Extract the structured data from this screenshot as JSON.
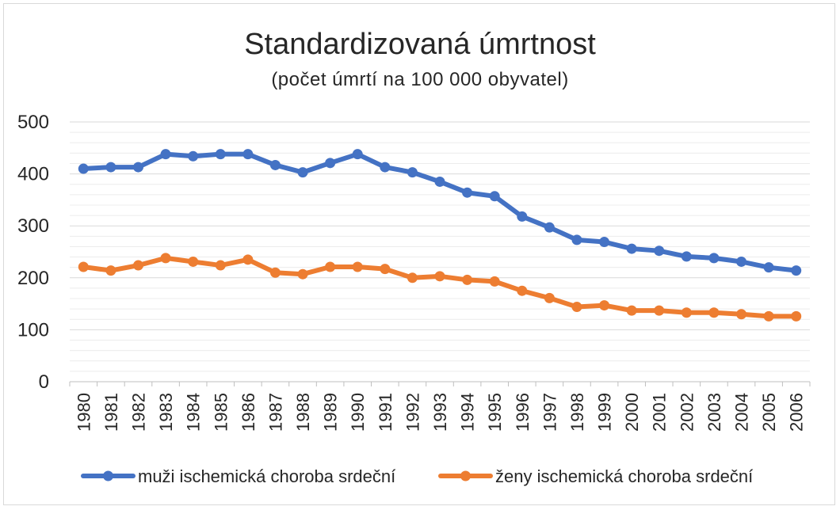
{
  "chart_data": {
    "type": "line",
    "title": "Standardizovaná úmrtnost",
    "subtitle": "(počet úmrtí na 100 000 obyvatel)",
    "xlabel": "",
    "ylabel": "",
    "ylim": [
      0,
      500
    ],
    "yticks": [
      0,
      100,
      200,
      300,
      400,
      500
    ],
    "grid": true,
    "legend_position": "bottom",
    "categories": [
      "1980",
      "1981",
      "1982",
      "1983",
      "1984",
      "1985",
      "1986",
      "1987",
      "1988",
      "1989",
      "1990",
      "1991",
      "1992",
      "1993",
      "1994",
      "1995",
      "1996",
      "1997",
      "1998",
      "1999",
      "2000",
      "2001",
      "2002",
      "2003",
      "2004",
      "2005",
      "2006"
    ],
    "series": [
      {
        "name": "muži ischemická choroba srdeční",
        "color": "#4472c4",
        "values": [
          410,
          413,
          413,
          438,
          434,
          438,
          438,
          417,
          403,
          421,
          438,
          413,
          403,
          385,
          364,
          357,
          318,
          297,
          273,
          269,
          256,
          252,
          241,
          238,
          231,
          220,
          214
        ]
      },
      {
        "name": "ženy ischemická choroba srdeční",
        "color": "#ed7d31",
        "values": [
          221,
          214,
          224,
          238,
          231,
          224,
          235,
          210,
          207,
          221,
          221,
          217,
          200,
          203,
          196,
          193,
          175,
          161,
          144,
          147,
          137,
          137,
          133,
          133,
          130,
          126,
          126
        ]
      }
    ]
  }
}
